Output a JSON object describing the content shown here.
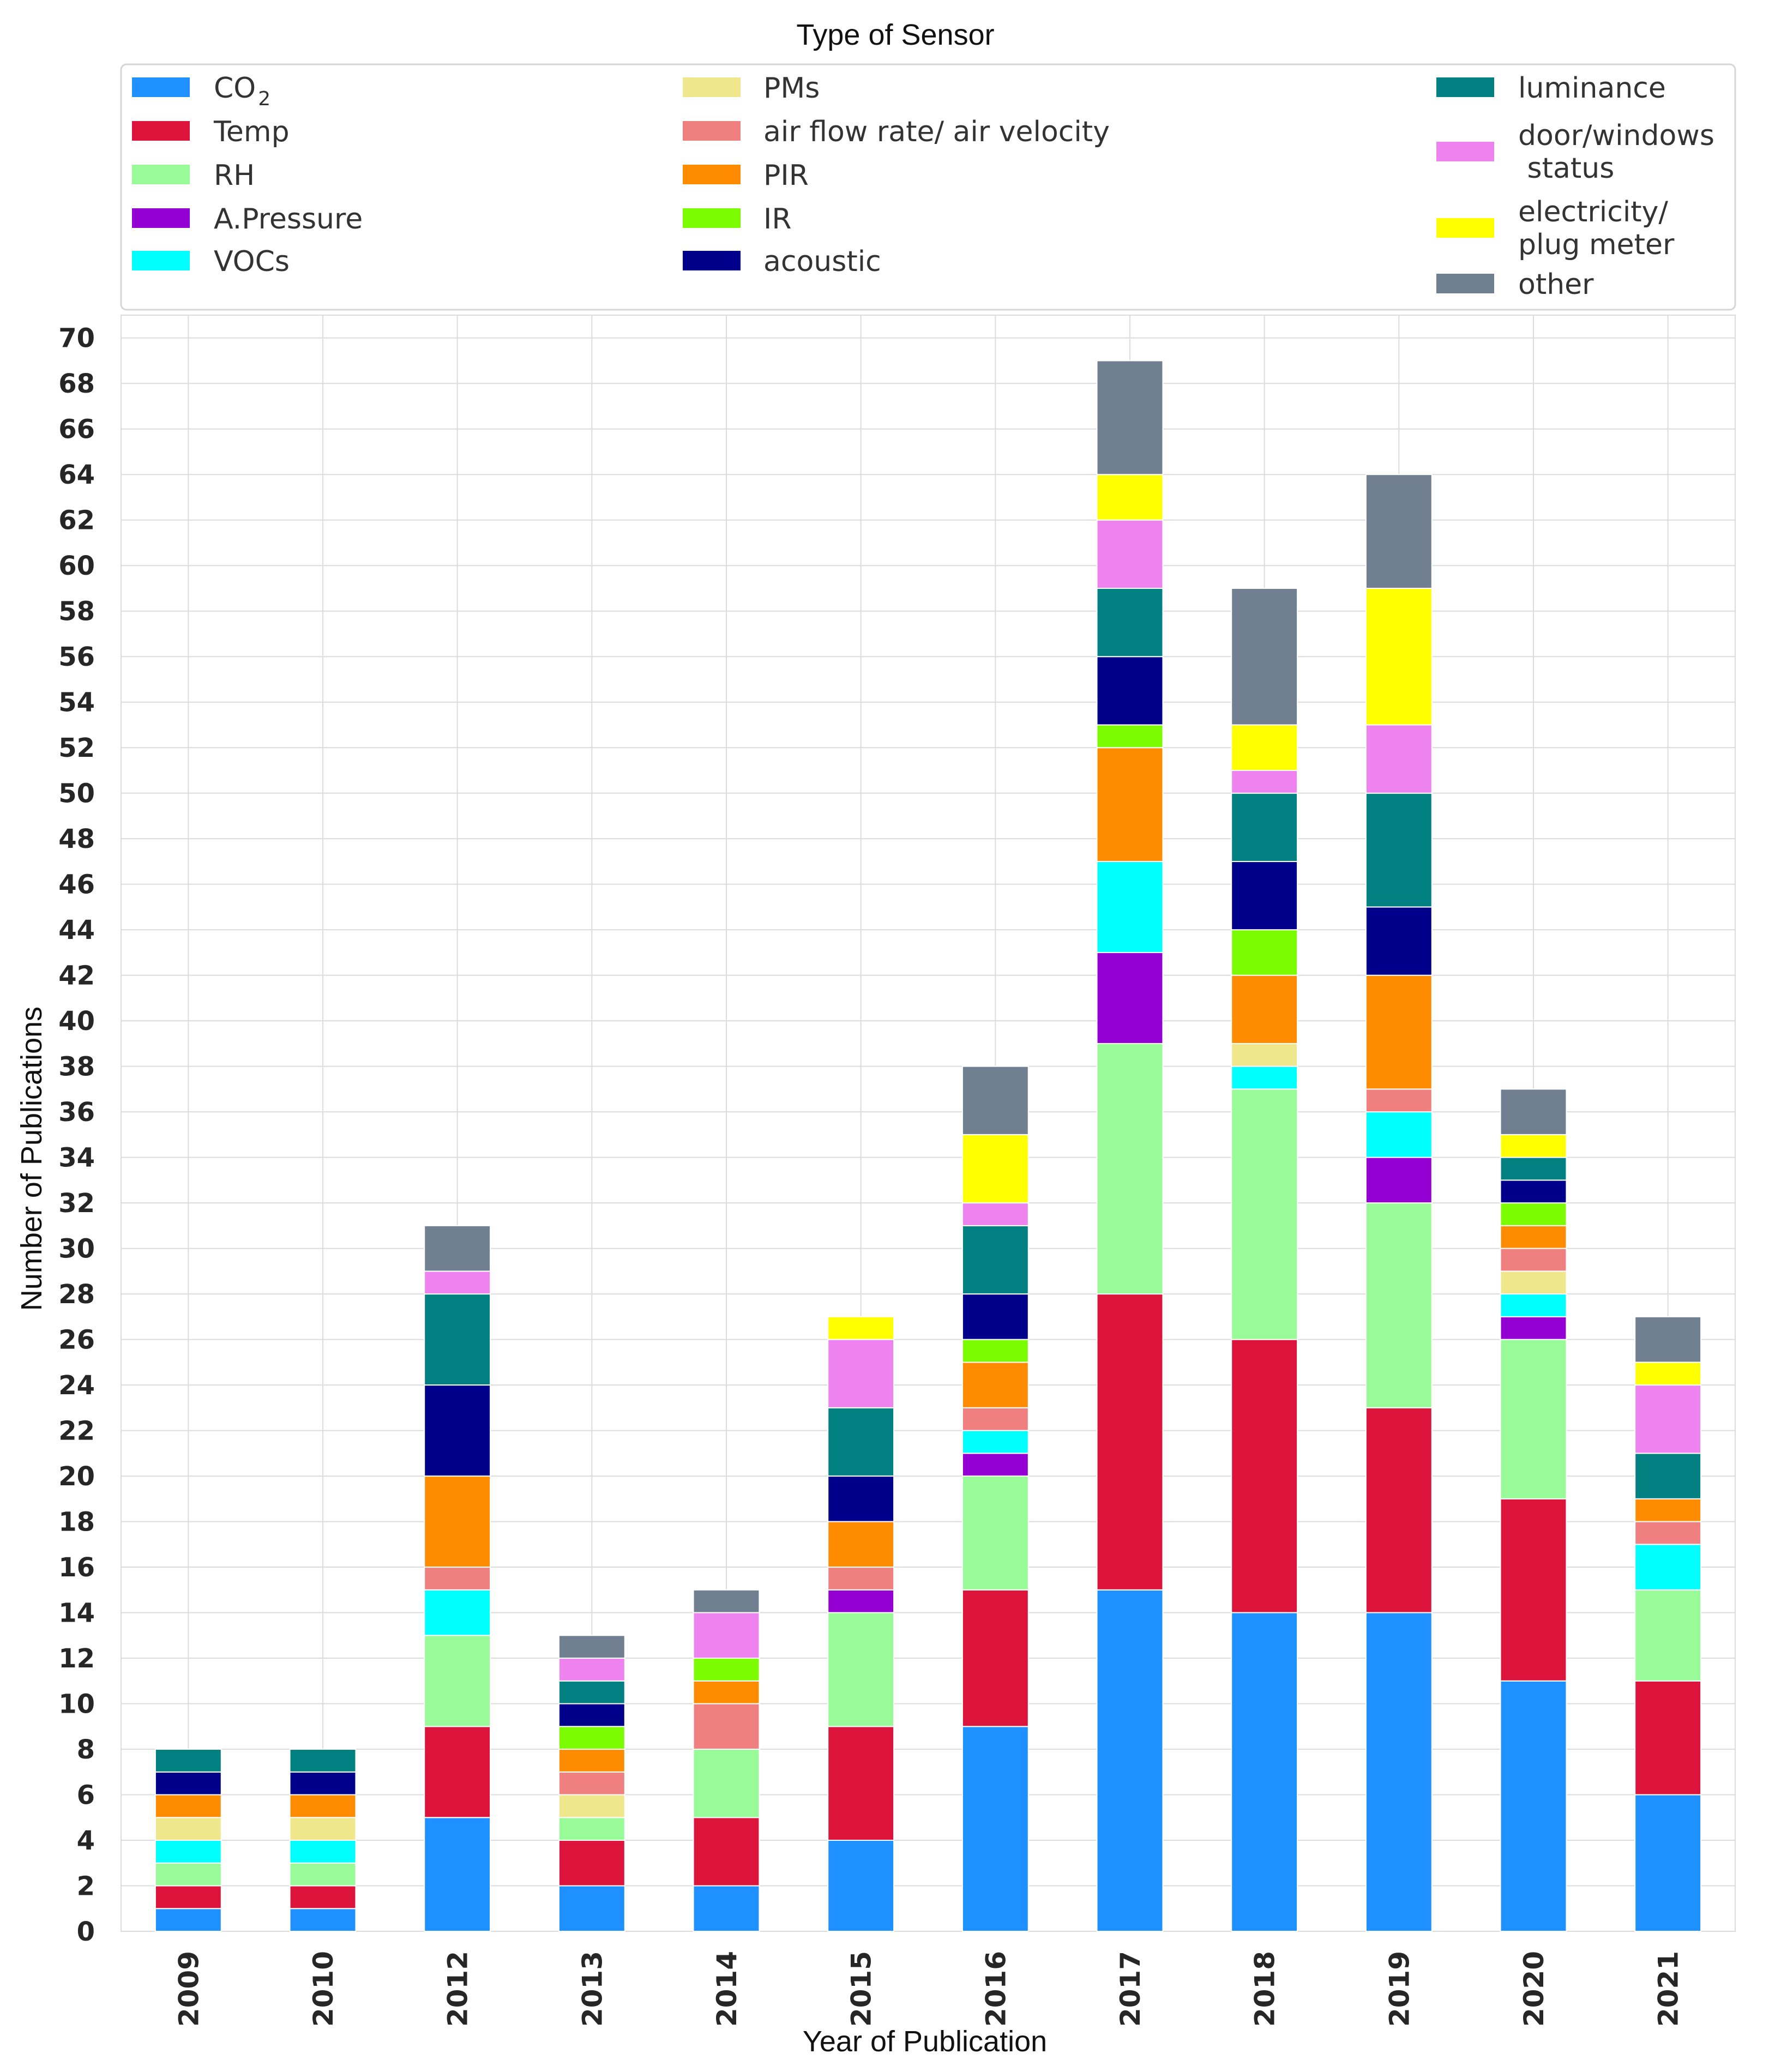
{
  "chart_data": {
    "type": "bar",
    "stacked": true,
    "xlabel": "Year of Publication",
    "ylabel": "Number of Publications",
    "ylim": [
      0,
      71
    ],
    "yticks": [
      0,
      2,
      4,
      6,
      8,
      10,
      12,
      14,
      16,
      18,
      20,
      22,
      24,
      26,
      28,
      30,
      32,
      34,
      36,
      38,
      40,
      42,
      44,
      46,
      48,
      50,
      52,
      54,
      56,
      58,
      60,
      62,
      64,
      66,
      68,
      70
    ],
    "grid": true,
    "legend_title": "Type of Sensor",
    "legend_position": "top",
    "categories": [
      "2009",
      "2010",
      "2012",
      "2013",
      "2014",
      "2015",
      "2016",
      "2017",
      "2018",
      "2019",
      "2020",
      "2021"
    ],
    "series": [
      {
        "name": "CO2",
        "label_main": "CO",
        "label_sub": "2",
        "color": "#1E90FF",
        "values": [
          1,
          1,
          5,
          2,
          2,
          4,
          9,
          15,
          14,
          14,
          11,
          6
        ]
      },
      {
        "name": "Temp",
        "color": "#DC143C",
        "values": [
          1,
          1,
          4,
          2,
          3,
          5,
          6,
          13,
          12,
          9,
          8,
          5
        ]
      },
      {
        "name": "RH",
        "color": "#98FB98",
        "values": [
          1,
          1,
          4,
          1,
          3,
          5,
          5,
          11,
          11,
          9,
          7,
          4
        ]
      },
      {
        "name": "A.Pressure",
        "color": "#9400D3",
        "values": [
          0,
          0,
          0,
          0,
          0,
          1,
          1,
          4,
          0,
          2,
          1,
          0
        ]
      },
      {
        "name": "VOCs",
        "color": "#00FFFF",
        "values": [
          1,
          1,
          2,
          0,
          0,
          0,
          1,
          4,
          1,
          2,
          1,
          2
        ]
      },
      {
        "name": "PMs",
        "color": "#F0E68C",
        "values": [
          1,
          1,
          0,
          1,
          0,
          0,
          0,
          0,
          1,
          0,
          1,
          0
        ]
      },
      {
        "name": "air flow rate/ air velocity",
        "color": "#F08080",
        "values": [
          0,
          0,
          1,
          1,
          2,
          1,
          1,
          0,
          0,
          1,
          1,
          1
        ]
      },
      {
        "name": "PIR",
        "color": "#FF8C00",
        "values": [
          1,
          1,
          4,
          1,
          1,
          2,
          2,
          5,
          3,
          5,
          1,
          1
        ]
      },
      {
        "name": "IR",
        "color": "#7CFC00",
        "values": [
          0,
          0,
          0,
          1,
          1,
          0,
          1,
          1,
          2,
          0,
          1,
          0
        ]
      },
      {
        "name": "acoustic",
        "color": "#00008B",
        "values": [
          1,
          1,
          4,
          1,
          0,
          2,
          2,
          3,
          3,
          3,
          1,
          0
        ]
      },
      {
        "name": "luminance",
        "color": "#008080",
        "values": [
          1,
          1,
          4,
          1,
          0,
          3,
          3,
          3,
          3,
          5,
          1,
          2
        ]
      },
      {
        "name": "door/windows\n status",
        "color": "#EE82EE",
        "values": [
          0,
          0,
          1,
          1,
          2,
          3,
          1,
          3,
          1,
          3,
          0,
          3
        ]
      },
      {
        "name": "electricity/\nplug meter",
        "color": "#FFFF00",
        "values": [
          0,
          0,
          0,
          0,
          0,
          1,
          3,
          2,
          2,
          6,
          1,
          1
        ]
      },
      {
        "name": "other",
        "color": "#708090",
        "values": [
          0,
          0,
          2,
          1,
          1,
          0,
          3,
          5,
          6,
          5,
          2,
          2
        ]
      }
    ]
  }
}
